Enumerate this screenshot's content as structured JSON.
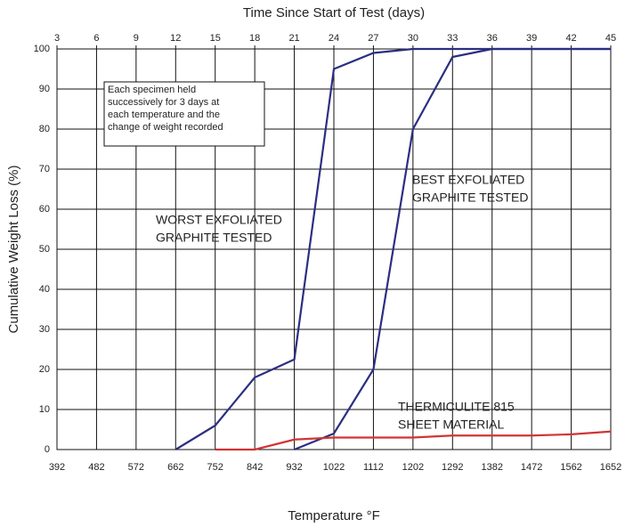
{
  "chart_data": {
    "type": "line",
    "title": "Time Since Start of Test (days)",
    "xlabel": "Temperature °F",
    "ylabel": "Cumulative Weight Loss (%)",
    "x": [
      392,
      482,
      572,
      662,
      752,
      842,
      932,
      1022,
      1112,
      1202,
      1292,
      1382,
      1472,
      1562,
      1652
    ],
    "xlim": [
      392,
      1652
    ],
    "xticks": [
      392,
      482,
      572,
      662,
      752,
      842,
      932,
      1022,
      1112,
      1202,
      1292,
      1382,
      1472,
      1562,
      1652
    ],
    "x2lim": [
      3,
      45
    ],
    "x2ticks": [
      3,
      6,
      9,
      12,
      15,
      18,
      21,
      24,
      27,
      30,
      33,
      36,
      39,
      42,
      45
    ],
    "ylim": [
      0,
      100
    ],
    "yticks": [
      0,
      10,
      20,
      30,
      40,
      50,
      60,
      70,
      80,
      90,
      100
    ],
    "grid": true,
    "series": [
      {
        "color": "#2b2f80",
        "label": [
          "WORST EXFOLIATED",
          "GRAPHITE TESTED"
        ],
        "values": [
          null,
          null,
          null,
          0,
          6,
          18,
          22.5,
          95,
          99,
          100,
          100,
          100,
          100,
          100,
          100
        ]
      },
      {
        "color": "#2b2f80",
        "label": [
          "BEST EXFOLIATED",
          "GRAPHITE TESTED"
        ],
        "values": [
          null,
          null,
          null,
          null,
          null,
          null,
          0,
          4,
          20,
          80,
          98,
          100,
          100,
          100,
          100
        ]
      },
      {
        "color": "#d03535",
        "label": [
          "THERMICULITE 815",
          "SHEET MATERIAL"
        ],
        "values": [
          null,
          null,
          null,
          null,
          0,
          0,
          2.5,
          3,
          3,
          3,
          3.5,
          3.5,
          3.5,
          3.8,
          4.5
        ]
      }
    ],
    "note": [
      "Each specimen held",
      "successively for 3 days at",
      "each temperature and the",
      "change of weight recorded"
    ]
  }
}
